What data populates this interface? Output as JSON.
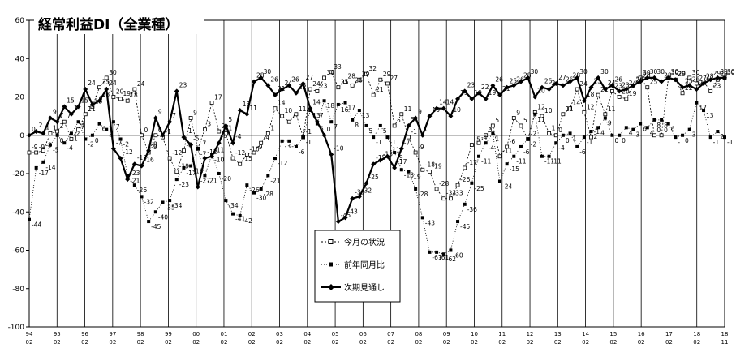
{
  "chart_data": {
    "type": "line",
    "title": "経常利益DI（全業種）",
    "ylim": [
      -100,
      60
    ],
    "ytick_step": 20,
    "grid": "vertical lines at each year, zero line horizontal",
    "legend_position": "center-right inset box",
    "x_year_labels": [
      "94",
      "95",
      "96",
      "97",
      "98",
      "99",
      "00",
      "01",
      "02",
      "03",
      "04",
      "05",
      "06",
      "07",
      "08",
      "09",
      "10",
      "11",
      "12",
      "13",
      "14",
      "15",
      "16",
      "17",
      "18",
      "18"
    ],
    "x_month_labels": [
      "02",
      "02",
      "02",
      "02",
      "02",
      "02",
      "02",
      "02",
      "02",
      "02",
      "02",
      "02",
      "02",
      "02",
      "02",
      "02",
      "02",
      "02",
      "02",
      "02",
      "02",
      "02",
      "02",
      "02",
      "02",
      "11"
    ],
    "series": [
      {
        "name": "今月の状況",
        "marker": "open-square",
        "line_style": "dashed",
        "color": "#000000",
        "values": [
          -9,
          -9,
          -8,
          1,
          2,
          7,
          -2,
          3,
          11,
          15,
          25,
          30,
          20,
          19,
          18,
          24,
          0,
          -9,
          0,
          -1,
          -12,
          -19,
          -8,
          9,
          -7,
          3,
          17,
          2,
          1,
          -12,
          -15,
          -10,
          -9,
          -4,
          1,
          14,
          10,
          7,
          11,
          -1,
          24,
          23,
          30,
          33,
          25,
          28,
          26,
          29,
          32,
          21,
          29,
          27,
          5,
          11,
          -1,
          -9,
          -18,
          -19,
          -28,
          -33,
          -33,
          -26,
          -17,
          -5,
          -4,
          0,
          5,
          -11,
          -6,
          9,
          5,
          -2,
          12,
          10,
          1,
          0,
          11,
          14,
          24,
          12,
          -1,
          21,
          11,
          23,
          20,
          19,
          26,
          30,
          25,
          0,
          0,
          30,
          29,
          22,
          30,
          27,
          28,
          23,
          29,
          30
        ],
        "labels": [
          -9,
          -9,
          -8,
          1,
          2,
          7,
          -2,
          3,
          11,
          15,
          25,
          30,
          20,
          19,
          18,
          24,
          0,
          -9,
          0,
          -1,
          -12,
          -19,
          -8,
          9,
          -7,
          3,
          17,
          2,
          1,
          -12,
          -15,
          -10,
          -9,
          -4,
          1,
          14,
          10,
          7,
          11,
          -1,
          24,
          23,
          30,
          33,
          25,
          28,
          26,
          29,
          32,
          21,
          29,
          27,
          5,
          11,
          -1,
          -9,
          -18,
          -19,
          -28,
          -33,
          -33,
          -26,
          -17,
          -5,
          -4,
          0,
          5,
          -11,
          -6,
          9,
          5,
          -2,
          12,
          10,
          1,
          0,
          11,
          14,
          24,
          12,
          -1,
          21,
          11,
          23,
          20,
          19,
          26,
          30,
          25,
          0,
          0,
          30,
          29,
          22,
          30,
          27,
          28,
          23,
          29,
          30
        ]
      },
      {
        "name": "前年同月比",
        "marker": "filled-square",
        "line_style": "dotted",
        "color": "#000000",
        "values": [
          -44,
          -17,
          -14,
          -5,
          0,
          -4,
          1,
          7,
          -2,
          0,
          6,
          3,
          7,
          -2,
          -21,
          -26,
          -32,
          -45,
          -40,
          -35,
          -34,
          -23,
          -17,
          -16,
          -7,
          -21,
          -10,
          -20,
          -34,
          -41,
          -42,
          -26,
          -30,
          -28,
          -21,
          -12,
          -3,
          -3,
          -6,
          -1,
          13,
          6,
          18,
          7,
          16,
          17,
          8,
          13,
          5,
          -1,
          5,
          -1,
          -9,
          -18,
          -19,
          -28,
          -43,
          -61,
          -61,
          -62,
          -60,
          -45,
          -36,
          -25,
          -11,
          -4,
          1,
          -24,
          -15,
          -11,
          -6,
          -2,
          11,
          -11,
          -11,
          -4,
          0,
          1,
          -6,
          -1,
          2,
          4,
          9,
          0,
          0,
          4,
          3,
          6,
          4,
          8,
          8,
          6,
          -1,
          0,
          3,
          17,
          13,
          -1,
          2,
          -1
        ],
        "labels": [
          -44,
          -17,
          -14,
          -5,
          0,
          -4,
          1,
          7,
          -2,
          0,
          6,
          3,
          7,
          -2,
          -21,
          -26,
          -32,
          -45,
          -40,
          -35,
          -34,
          -23,
          -17,
          -16,
          -7,
          -21,
          -10,
          -20,
          -34,
          -41,
          -42,
          -26,
          -30,
          -28,
          -21,
          -12,
          -3,
          -3,
          -6,
          -1,
          13,
          6,
          18,
          7,
          16,
          17,
          8,
          13,
          5,
          -1,
          5,
          -1,
          -9,
          -18,
          -19,
          -28,
          -43,
          -61,
          -61,
          -62,
          -60,
          -45,
          -36,
          -25,
          -11,
          -4,
          1,
          -24,
          -15,
          -11,
          -6,
          -2,
          11,
          -11,
          -11,
          -4,
          0,
          1,
          -6,
          -1,
          2,
          4,
          9,
          0,
          0,
          4,
          3,
          6,
          4,
          8,
          8,
          6,
          -1,
          0,
          3,
          17,
          13,
          -1,
          2,
          -1
        ]
      },
      {
        "name": "次期見通し",
        "marker": "filled-diamond",
        "line_style": "solid-bold",
        "color": "#000000",
        "values": [
          0,
          2,
          1,
          9,
          7,
          15,
          11,
          15,
          24,
          16,
          18,
          24,
          -7,
          -12,
          -23,
          -15,
          -16,
          -8,
          9,
          0,
          7,
          23,
          -1,
          -5,
          -27,
          -12,
          -11,
          -4,
          5,
          -4,
          13,
          11,
          28,
          30,
          26,
          21,
          24,
          26,
          22,
          27,
          14,
          7,
          0,
          -10,
          -45,
          -43,
          -33,
          -32,
          -25,
          -15,
          -13,
          -11,
          -17,
          -7,
          5,
          9,
          0,
          10,
          14,
          14,
          10,
          19,
          23,
          19,
          22,
          19,
          26,
          21,
          25,
          26,
          28,
          30,
          20,
          25,
          24,
          27,
          26,
          28,
          30,
          18,
          25,
          30,
          24,
          26,
          23,
          24,
          26,
          28,
          30,
          30,
          28,
          30,
          29,
          25,
          26,
          24,
          27,
          29,
          30,
          30
        ],
        "labels": [
          0,
          2,
          1,
          9,
          7,
          15,
          11,
          15,
          24,
          16,
          18,
          24,
          -7,
          -12,
          -23,
          -15,
          -16,
          -8,
          9,
          0,
          7,
          23,
          -1,
          -5,
          -27,
          -12,
          -11,
          -4,
          5,
          -4,
          13,
          11,
          28,
          30,
          26,
          21,
          24,
          26,
          22,
          27,
          14,
          7,
          0,
          -10,
          -45,
          -43,
          -33,
          -32,
          -25,
          -15,
          -13,
          -11,
          -17,
          -7,
          5,
          9,
          0,
          10,
          14,
          14,
          10,
          19,
          23,
          19,
          22,
          19,
          26,
          21,
          25,
          26,
          28,
          30,
          20,
          25,
          24,
          27,
          26,
          28,
          30,
          18,
          25,
          30,
          24,
          26,
          23,
          24,
          26,
          28,
          30,
          30,
          28,
          30,
          29,
          25,
          26,
          24,
          27,
          29,
          30,
          30
        ]
      }
    ]
  }
}
